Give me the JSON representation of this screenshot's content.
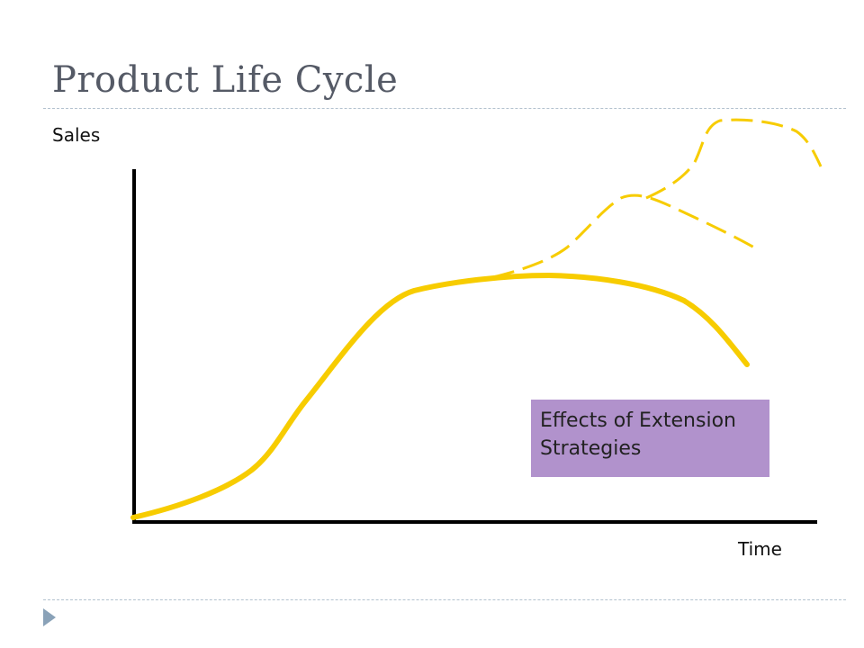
{
  "slide": {
    "title": "Product Life Cycle"
  },
  "diagram": {
    "y_axis_label": "Sales",
    "x_axis_label": "Time",
    "callout": {
      "line1": "Effects of Extension",
      "line2": "Strategies"
    }
  },
  "colors": {
    "curve": "#f7cc00",
    "callout_bg": "#b192cc",
    "axis": "#000000",
    "title": "#555a66",
    "rule": "#b3c2cf",
    "bullet": "#8aa2b8"
  },
  "icons": {
    "bullet": "triangle-bullet-icon"
  }
}
